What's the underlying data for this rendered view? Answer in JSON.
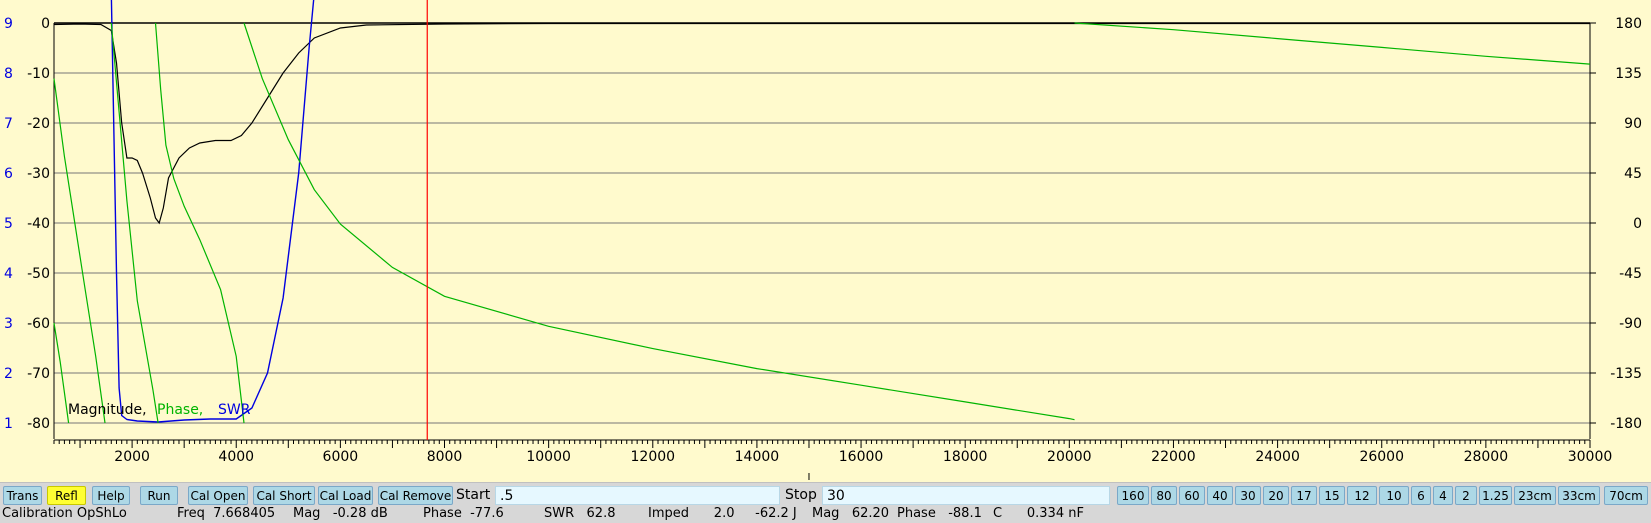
{
  "chart_data": {
    "type": "line",
    "xlabel": "",
    "ylabel": "",
    "x_ticks": [
      2000,
      4000,
      6000,
      8000,
      10000,
      12000,
      14000,
      16000,
      18000,
      20000,
      22000,
      24000,
      26000,
      28000,
      30000
    ],
    "x_range": [
      500,
      30000
    ],
    "y_left_swr_ticks": [
      "9",
      "8",
      "7",
      "6",
      "5",
      "4",
      "3",
      "2",
      "1"
    ],
    "y_left_mag_ticks": [
      "0",
      "-10",
      "-20",
      "-30",
      "-40",
      "-50",
      "-60",
      "-70",
      "-80"
    ],
    "y_right_phase_ticks": [
      "180",
      "135",
      "90",
      "45",
      "0",
      "-45",
      "-90",
      "-135",
      "-180"
    ],
    "mag_range": [
      -80,
      0
    ],
    "phase_range": [
      -180,
      180
    ],
    "swr_range": [
      1,
      9
    ],
    "grid": true,
    "marker_freq": 7668.405,
    "legend": [
      {
        "label": "Magnitude,",
        "color": "#000000"
      },
      {
        "label": "Phase,",
        "color": "#00b400"
      },
      {
        "label": "SWR",
        "color": "#0000e0"
      }
    ],
    "series": [
      {
        "name": "Magnitude",
        "color": "#000000",
        "points": [
          [
            500,
            -0.3
          ],
          [
            1000,
            -0.2
          ],
          [
            1400,
            -0.3
          ],
          [
            1600,
            -1.5
          ],
          [
            1700,
            -8
          ],
          [
            1800,
            -20
          ],
          [
            1900,
            -27
          ],
          [
            2000,
            -27
          ],
          [
            2100,
            -27.5
          ],
          [
            2200,
            -30
          ],
          [
            2350,
            -35
          ],
          [
            2450,
            -39
          ],
          [
            2520,
            -40
          ],
          [
            2600,
            -37
          ],
          [
            2700,
            -31
          ],
          [
            2900,
            -27
          ],
          [
            3100,
            -25
          ],
          [
            3300,
            -24
          ],
          [
            3600,
            -23.5
          ],
          [
            3900,
            -23.5
          ],
          [
            4100,
            -22.5
          ],
          [
            4300,
            -20
          ],
          [
            4600,
            -15
          ],
          [
            4900,
            -10
          ],
          [
            5200,
            -6
          ],
          [
            5500,
            -3
          ],
          [
            6000,
            -1
          ],
          [
            6500,
            -0.4
          ],
          [
            8000,
            -0.2
          ],
          [
            10000,
            -0.1
          ],
          [
            20000,
            -0.1
          ],
          [
            30000,
            -0.1
          ]
        ]
      },
      {
        "name": "SWR",
        "color": "#0000e0",
        "points": [
          [
            1600,
            9.6
          ],
          [
            1700,
            4
          ],
          [
            1750,
            1.7
          ],
          [
            1800,
            1.15
          ],
          [
            1900,
            1.07
          ],
          [
            2100,
            1.04
          ],
          [
            2500,
            1.02
          ],
          [
            3000,
            1.06
          ],
          [
            3500,
            1.08
          ],
          [
            4000,
            1.08
          ],
          [
            4300,
            1.3
          ],
          [
            4600,
            2
          ],
          [
            4900,
            3.5
          ],
          [
            5200,
            6
          ],
          [
            5400,
            8.5
          ],
          [
            5500,
            9.6
          ]
        ]
      },
      {
        "name": "Phase",
        "color": "#00b400",
        "segments": [
          [
            [
              500,
              130
            ],
            [
              700,
              60
            ],
            [
              900,
              0
            ],
            [
              1100,
              -60
            ],
            [
              1300,
              -120
            ],
            [
              1480,
              -180
            ]
          ],
          [
            [
              500,
              -90
            ],
            [
              620,
              -125
            ],
            [
              780,
              -180
            ]
          ],
          [
            [
              1600,
              180
            ],
            [
              1750,
              100
            ],
            [
              1900,
              20
            ],
            [
              2100,
              -70
            ],
            [
              2400,
              -150
            ],
            [
              2500,
              -180
            ]
          ],
          [
            [
              2450,
              180
            ],
            [
              2550,
              120
            ],
            [
              2650,
              70
            ],
            [
              2800,
              40
            ],
            [
              3000,
              15
            ],
            [
              3300,
              -15
            ],
            [
              3700,
              -60
            ],
            [
              4000,
              -120
            ],
            [
              4150,
              -180
            ]
          ],
          [
            [
              4150,
              180
            ],
            [
              4500,
              130
            ],
            [
              5000,
              75
            ],
            [
              5500,
              30
            ],
            [
              6000,
              -1
            ],
            [
              7000,
              -40
            ],
            [
              8000,
              -66
            ],
            [
              10000,
              -93
            ],
            [
              12000,
              -113
            ],
            [
              14000,
              -131
            ],
            [
              16000,
              -146
            ],
            [
              18000,
              -161
            ],
            [
              20000,
              -176
            ],
            [
              20100,
              -177
            ]
          ],
          [
            [
              20100,
              180
            ],
            [
              22000,
              174
            ],
            [
              24000,
              166
            ],
            [
              26000,
              158
            ],
            [
              28000,
              150
            ],
            [
              30000,
              143
            ]
          ]
        ]
      }
    ]
  },
  "toolbar": {
    "trans": "Trans",
    "refl": "Refl",
    "help": "Help",
    "run": "Run",
    "cal_open": "Cal Open",
    "cal_short": "Cal Short",
    "cal_load": "Cal Load",
    "cal_remove": "Cal Remove",
    "start_label": "Start",
    "start_value": ".5",
    "stop_label": "Stop",
    "stop_value": "30",
    "bands": [
      "160",
      "80",
      "60",
      "40",
      "30",
      "20",
      "17",
      "15",
      "12",
      "10",
      "6",
      "4",
      "2",
      "1.25",
      "23cm",
      "33cm",
      "70cm"
    ]
  },
  "status": {
    "calibration": "Calibration OpShLo",
    "freq": "Freq  7.668405",
    "mag": "Mag   -0.28 dB",
    "phase": "Phase  -77.6",
    "swr": "SWR   62.8",
    "imped": "Imped      2.0     -62.2 J",
    "mag2": "Mag   62.20",
    "phase2": "Phase   -88.1",
    "c": "C      0.334 nF"
  }
}
